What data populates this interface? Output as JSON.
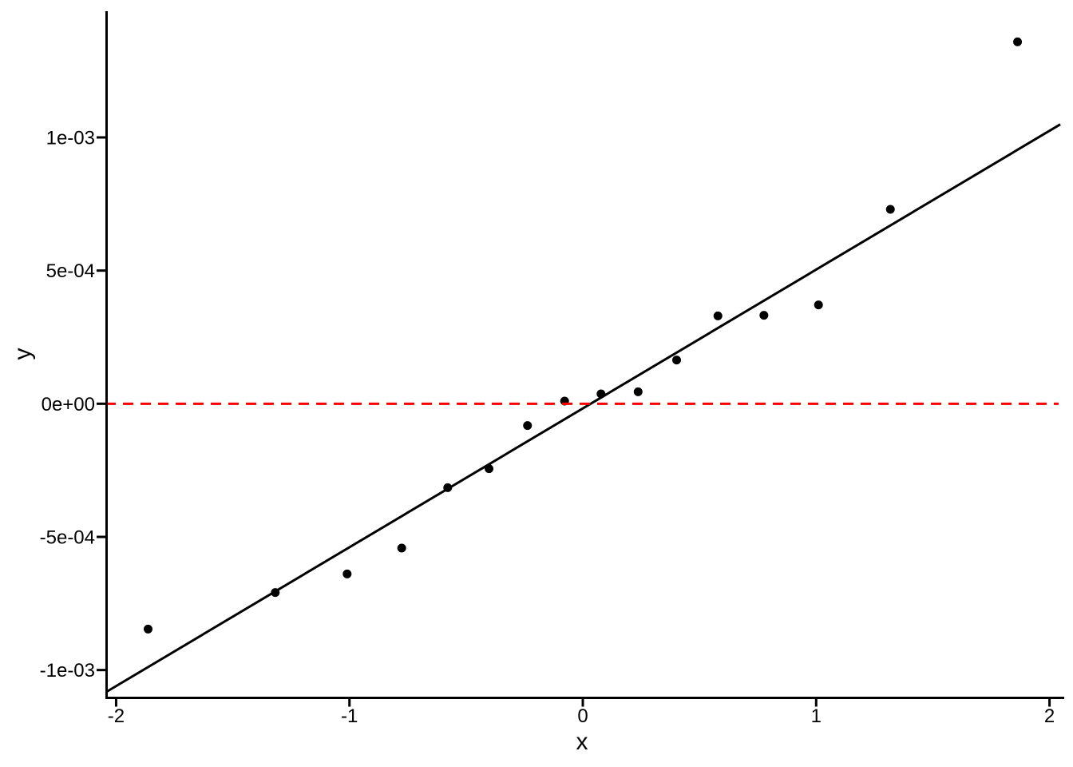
{
  "chart_data": {
    "type": "scatter",
    "title": "",
    "xlabel": "x",
    "ylabel": "y",
    "background_color": "#FFFFFF",
    "point_color": "#000000",
    "axis_color": "#000000",
    "grid": "off",
    "legend": "none",
    "xlim": [
      -2.046,
      2.063
    ],
    "ylim": [
      -0.001103,
      0.001474
    ],
    "x_ticks": [
      {
        "value": -2,
        "label": "-2"
      },
      {
        "value": -1,
        "label": "-1"
      },
      {
        "value": 0,
        "label": "0"
      },
      {
        "value": 1,
        "label": "1"
      },
      {
        "value": 2,
        "label": "2"
      }
    ],
    "y_ticks": [
      {
        "value": -0.001,
        "label": "-1e-03"
      },
      {
        "value": -0.0005,
        "label": "-5e-04"
      },
      {
        "value": 0,
        "label": "0e+00"
      },
      {
        "value": 0.0005,
        "label": "5e-04"
      },
      {
        "value": 0.001,
        "label": "1e-03"
      }
    ],
    "points": [
      {
        "x": -1.863,
        "y": -0.000846
      },
      {
        "x": -1.318,
        "y": -0.000709
      },
      {
        "x": -1.01,
        "y": -0.000639
      },
      {
        "x": -0.776,
        "y": -0.000542
      },
      {
        "x": -0.579,
        "y": -0.000315
      },
      {
        "x": -0.402,
        "y": -0.000244
      },
      {
        "x": -0.237,
        "y": -8.2e-05
      },
      {
        "x": -0.078,
        "y": 1e-05
      },
      {
        "x": 0.078,
        "y": 3.7e-05
      },
      {
        "x": 0.237,
        "y": 4.5e-05
      },
      {
        "x": 0.402,
        "y": 0.000164
      },
      {
        "x": 0.579,
        "y": 0.00033
      },
      {
        "x": 0.776,
        "y": 0.000332
      },
      {
        "x": 1.01,
        "y": 0.000371
      },
      {
        "x": 1.318,
        "y": 0.00073
      },
      {
        "x": 1.863,
        "y": 0.001359
      }
    ],
    "fit_line": {
      "style": "solid",
      "color": "#000000",
      "x1": -2.042,
      "y1": -0.001082,
      "x2": 2.046,
      "y2": 0.001049
    },
    "reference_line": {
      "style": "dashed",
      "color": "#FF0000",
      "y": 0,
      "x1": -2.046,
      "x2": 2.039
    }
  }
}
